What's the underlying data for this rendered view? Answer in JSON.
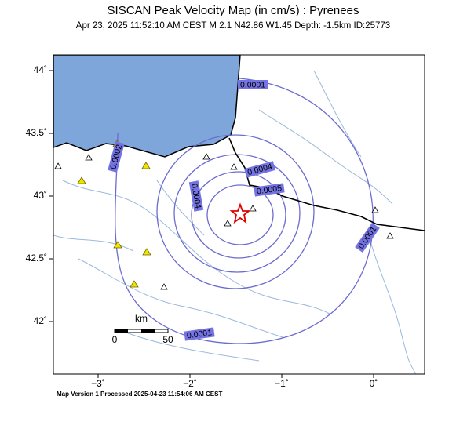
{
  "header": {
    "title": "SISCAN Peak Velocity Map (in cm/s) : Pyrenees",
    "subtitle": "Apr 23, 2025 11:52:10 AM CEST   M 2.1   N42.86 W1.45   Depth: -1.5km   ID:25773"
  },
  "lon_ticks": [
    {
      "value": -3,
      "label": "−3˚"
    },
    {
      "value": -2,
      "label": "−2˚"
    },
    {
      "value": -1,
      "label": "−1˚"
    },
    {
      "value": 0,
      "label": "0˚"
    }
  ],
  "lat_ticks": [
    {
      "value": 44,
      "label": "44˚"
    },
    {
      "value": 43.5,
      "label": "43.5˚"
    },
    {
      "value": 43,
      "label": "43˚"
    },
    {
      "value": 42.5,
      "label": "42.5˚"
    },
    {
      "value": 42,
      "label": "42˚"
    }
  ],
  "contour_labels": [
    "0.0001",
    "0.0002",
    "0.0004",
    "0.0005",
    "0.0004",
    "0.0001",
    "0.0001"
  ],
  "scale": {
    "unit": "km",
    "start": "0",
    "end": "50"
  },
  "footer": "Map Version 1 Processed 2025-04-23 11:54:06 AM CEST"
}
